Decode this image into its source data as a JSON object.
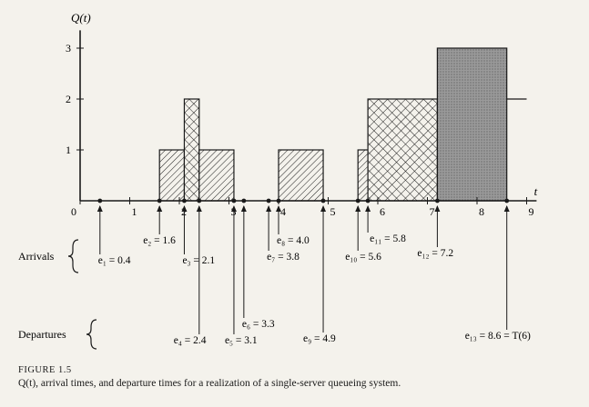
{
  "chart_data": {
    "type": "step",
    "ylabel": "Q(t)",
    "xlabel": "t",
    "xlim": [
      0,
      9
    ],
    "ylim": [
      0,
      3
    ],
    "x_ticks": [
      "0",
      "1",
      "2",
      "3",
      "4",
      "5",
      "6",
      "7",
      "8",
      "9"
    ],
    "y_ticks": [
      "1",
      "2",
      "3"
    ],
    "steps": [
      {
        "from": 0,
        "to": 1.6,
        "q": 0
      },
      {
        "from": 1.6,
        "to": 2.1,
        "q": 1
      },
      {
        "from": 2.1,
        "to": 2.4,
        "q": 2
      },
      {
        "from": 2.4,
        "to": 3.1,
        "q": 1
      },
      {
        "from": 3.1,
        "to": 3.3,
        "q": 0
      },
      {
        "from": 3.3,
        "to": 3.8,
        "q": 0
      },
      {
        "from": 3.8,
        "to": 4.0,
        "q": 0
      },
      {
        "from": 4.0,
        "to": 4.9,
        "q": 1
      },
      {
        "from": 4.9,
        "to": 5.6,
        "q": 0
      },
      {
        "from": 5.6,
        "to": 5.8,
        "q": 1
      },
      {
        "from": 5.8,
        "to": 7.2,
        "q": 2
      },
      {
        "from": 7.2,
        "to": 8.6,
        "q": 3
      },
      {
        "from": 8.6,
        "to": 9.0,
        "q": 2
      }
    ],
    "arrivals_label": "Arrivals",
    "departures_label": "Departures",
    "arrivals": [
      {
        "name": "e1",
        "label": "e₁ = 0.4",
        "t": 0.4
      },
      {
        "name": "e2",
        "label": "e₂ = 1.6",
        "t": 1.6
      },
      {
        "name": "e3",
        "label": "e₃ = 2.1",
        "t": 2.1
      },
      {
        "name": "e7",
        "label": "e₇ = 3.8",
        "t": 3.8
      },
      {
        "name": "e8",
        "label": "e₈ = 4.0",
        "t": 4.0
      },
      {
        "name": "e10",
        "label": "e₁₀ = 5.6",
        "t": 5.6
      },
      {
        "name": "e11",
        "label": "e₁₁ = 5.8",
        "t": 5.8
      },
      {
        "name": "e12",
        "label": "e₁₂ = 7.2",
        "t": 7.2
      }
    ],
    "departures": [
      {
        "name": "e4",
        "label": "e₄ = 2.4",
        "t": 2.4
      },
      {
        "name": "e5",
        "label": "e₅ = 3.1",
        "t": 3.1
      },
      {
        "name": "e6",
        "label": "e₆ = 3.3",
        "t": 3.3
      },
      {
        "name": "e9",
        "label": "e₉ = 4.9",
        "t": 4.9
      },
      {
        "name": "e13",
        "label": "e₁₃ = 8.6 = T(6)",
        "t": 8.6
      }
    ]
  },
  "caption": {
    "figure_label": "FIGURE 1.5",
    "text": "Q(t), arrival times, and departure times for a realization of a single-server queueing system."
  },
  "colors": {
    "ink": "#1a1a1a",
    "paper": "#f4f2ec",
    "dark_fill": "#9a9a9a"
  }
}
